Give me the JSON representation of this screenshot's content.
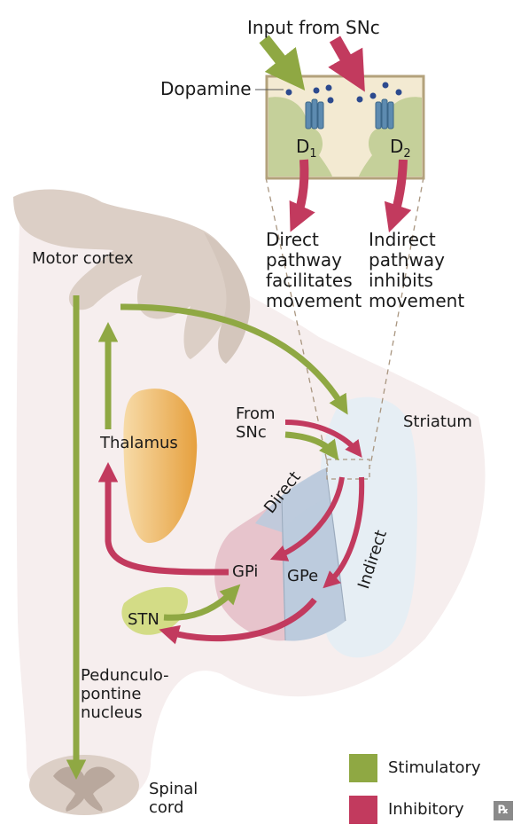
{
  "labels": {
    "input_from_snc": "Input from SNc",
    "dopamine": "Dopamine",
    "d1": "D",
    "d1_sub": "1",
    "d2": "D",
    "d2_sub": "2",
    "direct_pathway": "Direct\npathway\nfacilitates\nmovement",
    "indirect_pathway": "Indirect\npathway\ninhibits\nmovement",
    "motor_cortex": "Motor cortex",
    "from_snc": "From\nSNc",
    "striatum": "Striatum",
    "thalamus": "Thalamus",
    "direct": "Direct",
    "indirect": "Indirect",
    "gpi": "GPi",
    "gpe": "GPe",
    "stn": "STN",
    "pedunculopontine": "Pedunculo-\npontine\nnucleus",
    "spinal_cord": "Spinal\ncord"
  },
  "legend": [
    {
      "label": "Stimulatory",
      "color": "#8fa843"
    },
    {
      "label": "Inhibitory",
      "color": "#c23a5e"
    }
  ],
  "colors": {
    "stimulatory": "#8fa843",
    "inhibitory": "#c23a5e",
    "brain": "#f6eeee",
    "cortex": "#dccfc6",
    "thalamus": "#e9a444",
    "striatum": "#e6eef4",
    "gpe": "#bccbdd",
    "gpi": "#e7c4cc",
    "stn": "#d3dc86",
    "box_fill": "#c5d09a",
    "box_border": "#b3a27c",
    "receptor": "#5d8bb0",
    "dopamine": "#2c4a8e"
  }
}
